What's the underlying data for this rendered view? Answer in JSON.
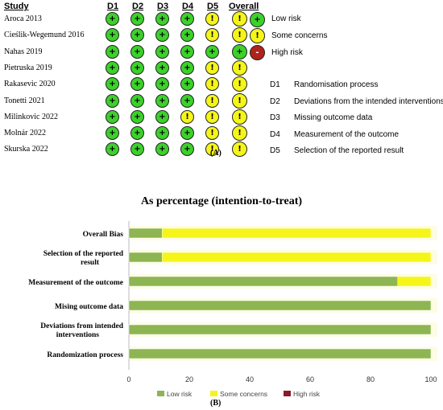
{
  "rob": {
    "headers": {
      "study": "Study",
      "d1": "D1",
      "d2": "D2",
      "d3": "D3",
      "d4": "D4",
      "d5": "D5",
      "overall": "Overall"
    },
    "studies": [
      {
        "name": "Aroca 2013",
        "j": [
          "low",
          "low",
          "low",
          "low",
          "some",
          "some"
        ]
      },
      {
        "name": "Cieślik-Wegemund 2016",
        "j": [
          "low",
          "low",
          "low",
          "low",
          "some",
          "some"
        ]
      },
      {
        "name": "Nahas 2019",
        "j": [
          "low",
          "low",
          "low",
          "low",
          "low",
          "low"
        ]
      },
      {
        "name": "Pietruska 2019",
        "j": [
          "low",
          "low",
          "low",
          "low",
          "some",
          "some"
        ]
      },
      {
        "name": "Rakasevic 2020",
        "j": [
          "low",
          "low",
          "low",
          "low",
          "some",
          "some"
        ]
      },
      {
        "name": "Tonetti 2021",
        "j": [
          "low",
          "low",
          "low",
          "low",
          "some",
          "some"
        ]
      },
      {
        "name": "Milinkovic 2022",
        "j": [
          "low",
          "low",
          "low",
          "some",
          "some",
          "some"
        ]
      },
      {
        "name": "Molnár 2022",
        "j": [
          "low",
          "low",
          "low",
          "low",
          "some",
          "some"
        ]
      },
      {
        "name": "Skurska 2022",
        "j": [
          "low",
          "low",
          "low",
          "low",
          "some",
          "some"
        ]
      }
    ],
    "symbols": {
      "low": "+",
      "some": "!",
      "high": "-"
    },
    "colors": {
      "low": "#3cd12b",
      "some": "#f5f51a",
      "high": "#b0231a"
    },
    "legend": {
      "low": "Low risk",
      "some": "Some concerns",
      "high": "High risk"
    },
    "domains": [
      {
        "code": "D1",
        "label": "Randomisation process"
      },
      {
        "code": "D2",
        "label": "Deviations from the intended interventions"
      },
      {
        "code": "D3",
        "label": "Missing outcome data"
      },
      {
        "code": "D4",
        "label": "Measurement of the outcome"
      },
      {
        "code": "D5",
        "label": "Selection of the reported result"
      }
    ],
    "panel_label": "(A)"
  },
  "chart_data": {
    "type": "bar",
    "orientation": "horizontal",
    "stacked": true,
    "title": "As percentage (intention-to-treat)",
    "categories": [
      "Overall Bias",
      "Selection of the reported result",
      "Measurement of the outcome",
      "Mising outcome data",
      "Deviations from intended interventions",
      "Randomization process"
    ],
    "series": [
      {
        "name": "Low risk",
        "color": "#8db552",
        "values": [
          11,
          11,
          89,
          100,
          100,
          100
        ]
      },
      {
        "name": "Some concerns",
        "color": "#f5f51a",
        "values": [
          89,
          89,
          11,
          0,
          0,
          0
        ]
      },
      {
        "name": "High risk",
        "color": "#8b1a2a",
        "values": [
          0,
          0,
          0,
          0,
          0,
          0
        ]
      }
    ],
    "xlim": [
      0,
      100
    ],
    "xticks": [
      "0",
      "20",
      "40",
      "60",
      "80",
      "100"
    ],
    "legend_position": "bottom",
    "panel_label": "(B)"
  }
}
